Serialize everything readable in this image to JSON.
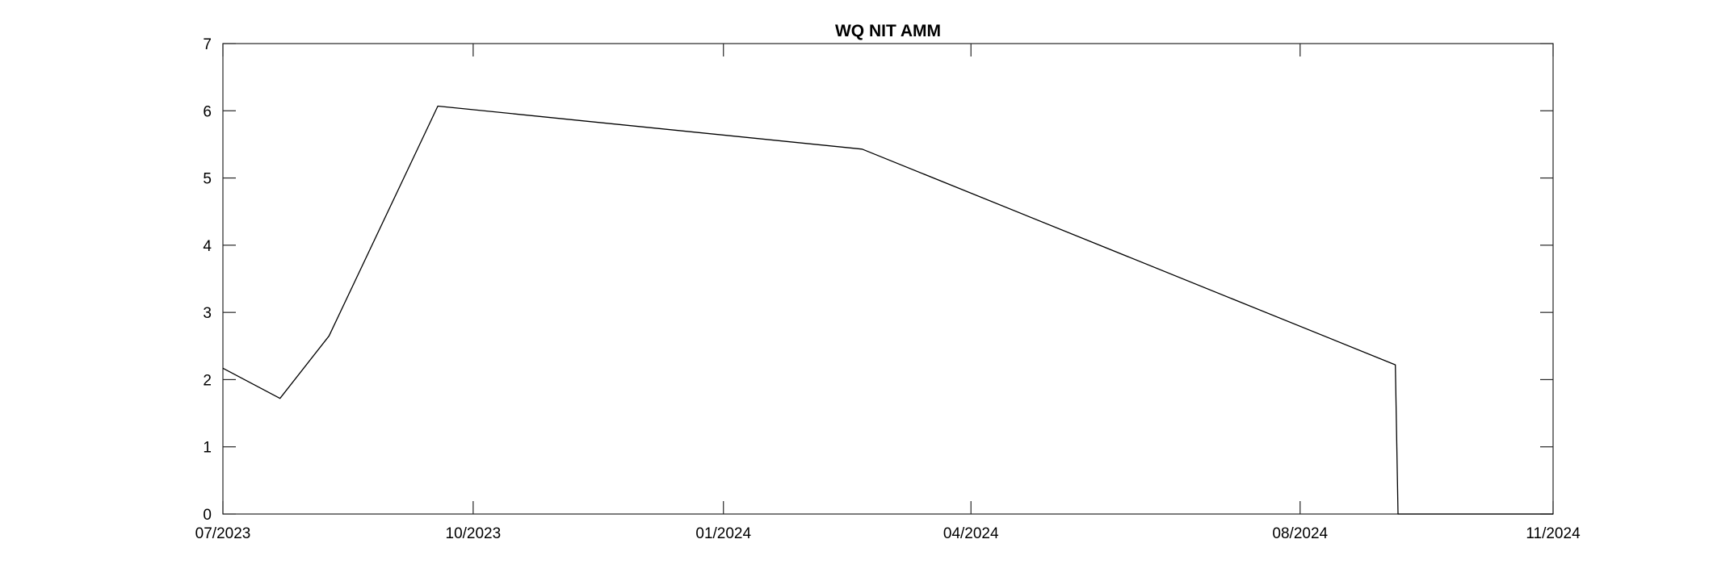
{
  "chart_data": {
    "type": "line",
    "title": "WQ NIT AMM",
    "xlabel": "",
    "ylabel": "",
    "xlim": [
      "2023-07-01",
      "2024-11-01"
    ],
    "ylim": [
      0,
      7
    ],
    "x_ticks": [
      {
        "date": "2023-07-01",
        "label": "07/2023"
      },
      {
        "date": "2023-10-01",
        "label": "10/2023"
      },
      {
        "date": "2024-01-01",
        "label": "01/2024"
      },
      {
        "date": "2024-04-01",
        "label": "04/2024"
      },
      {
        "date": "2024-07-31",
        "label": "08/2024"
      },
      {
        "date": "2024-11-01",
        "label": "11/2024"
      }
    ],
    "y_ticks": [
      0,
      1,
      2,
      3,
      4,
      5,
      6,
      7
    ],
    "grid": false,
    "legend": "none",
    "line_color": "#000000",
    "series": [
      {
        "x": [
          "2023-07-01",
          "2023-07-22",
          "2023-08-09",
          "2023-09-18",
          "2024-02-21",
          "2024-09-04",
          "2024-09-05",
          "2024-11-01"
        ],
        "y": [
          2.17,
          1.72,
          2.65,
          6.07,
          5.43,
          2.22,
          0.0,
          0.0
        ]
      }
    ]
  }
}
